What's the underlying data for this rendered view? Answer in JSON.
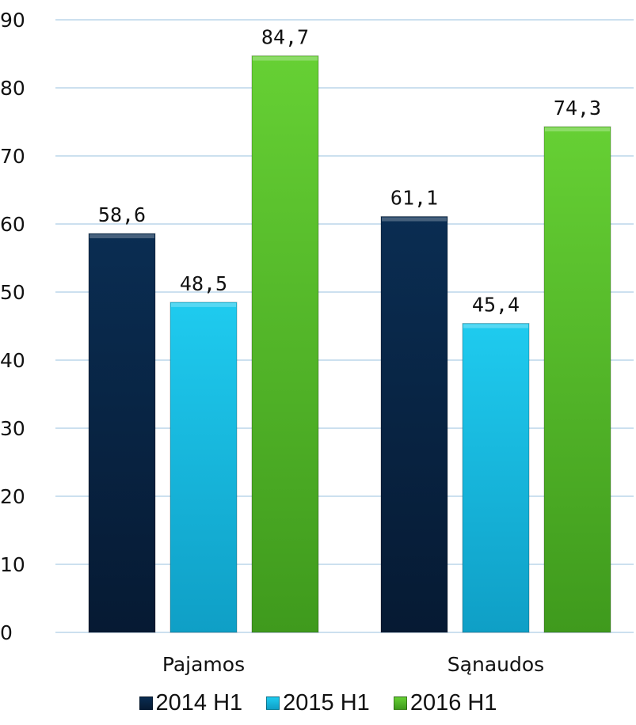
{
  "chart_data": {
    "type": "bar",
    "title": "",
    "xlabel": "",
    "ylabel": "",
    "categories": [
      "Pajamos",
      "Sąnaudos"
    ],
    "series": [
      {
        "name": "2014 H1",
        "values": [
          58.6,
          61.1
        ],
        "labels": [
          "58,6",
          "61,1"
        ],
        "color": "#0d2b4e"
      },
      {
        "name": "2015 H1",
        "values": [
          48.5,
          45.4
        ],
        "labels": [
          "48,5",
          "45,4"
        ],
        "color": "#16bfe3"
      },
      {
        "name": "2016 H1",
        "values": [
          84.7,
          74.3
        ],
        "labels": [
          "84,7",
          "74,3"
        ],
        "color": "#5ec32c"
      }
    ],
    "ylim": [
      0,
      90
    ],
    "yticks": [
      "0",
      "10",
      "20",
      "30",
      "40",
      "50",
      "60",
      "70",
      "80",
      "90"
    ],
    "grid": true,
    "legend_position": "bottom"
  }
}
